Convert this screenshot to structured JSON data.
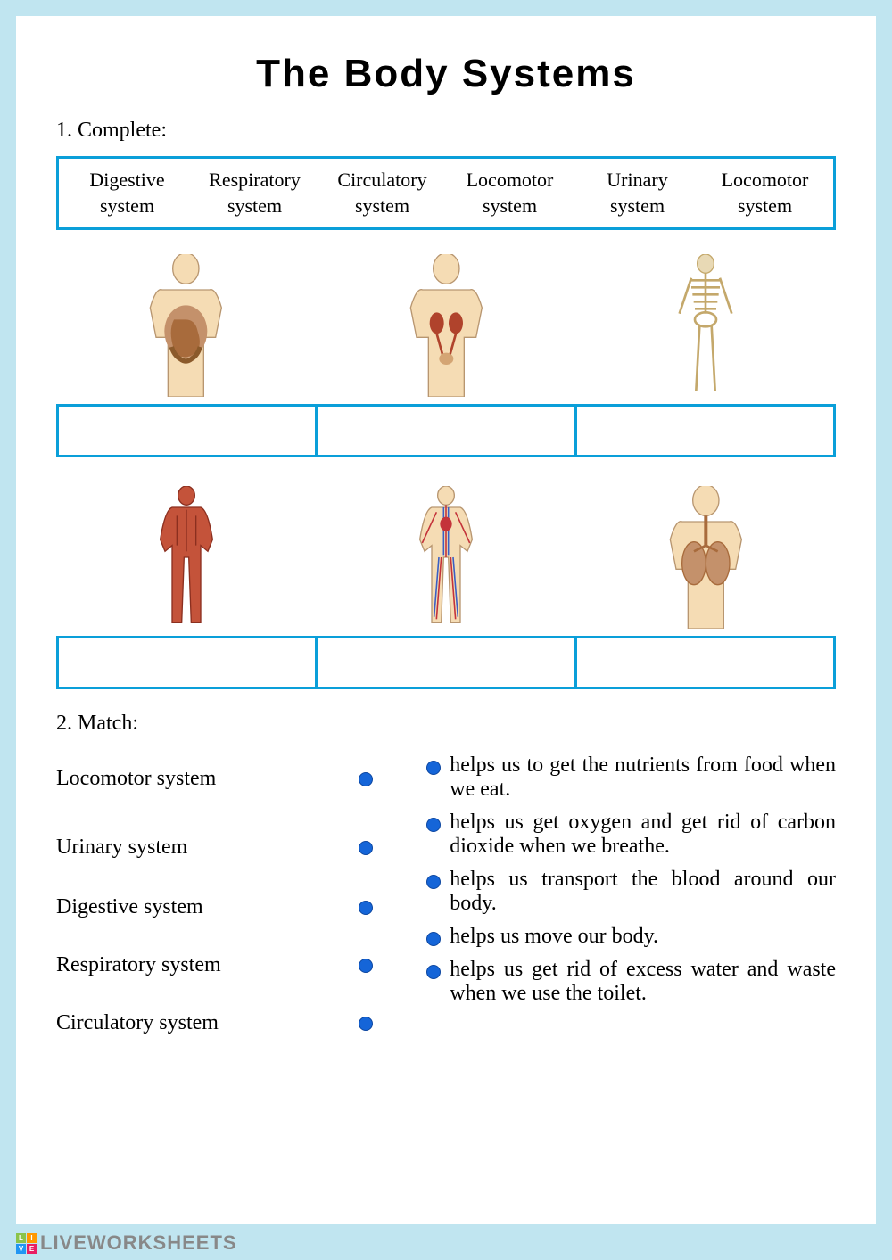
{
  "title": "The body systems",
  "section1_label": "1. Complete:",
  "wordbank": [
    "Digestive system",
    "Respiratory system",
    "Circulatory system",
    "Locomotor system",
    "Urinary system",
    "Locomotor system"
  ],
  "section2_label": "2. Match:",
  "match_left": [
    "Locomotor system",
    "Urinary system",
    "Digestive system",
    "Respiratory system",
    "Circulatory system"
  ],
  "match_right": [
    "helps us to get the nutrients from food when we eat.",
    "helps us get oxygen and get rid of carbon dioxide when we breathe.",
    "helps us transport the blood around our body.",
    "helps us move our body.",
    "helps us get rid of excess water and waste when we use the toilet."
  ],
  "watermark": "LIVEWORKSHEETS",
  "body_figures": [
    {
      "name": "digestive",
      "skin": "#f5dcb4",
      "organ": "#a86b3c"
    },
    {
      "name": "urinary",
      "skin": "#f5dcb4",
      "organ": "#b0432c"
    },
    {
      "name": "skeleton",
      "skin": "#e8d9b5",
      "organ": "#d4c08f"
    },
    {
      "name": "muscular",
      "skin": "#c4533a",
      "organ": "#8b2f1f"
    },
    {
      "name": "circulatory",
      "skin": "#f5dcb4",
      "organ": "#3a5fc4"
    },
    {
      "name": "respiratory",
      "skin": "#f5dcb4",
      "organ": "#c4916b"
    }
  ],
  "colors": {
    "border": "#0a9fd9",
    "dot": "#1565d8",
    "bg": "#c0e5f0"
  }
}
